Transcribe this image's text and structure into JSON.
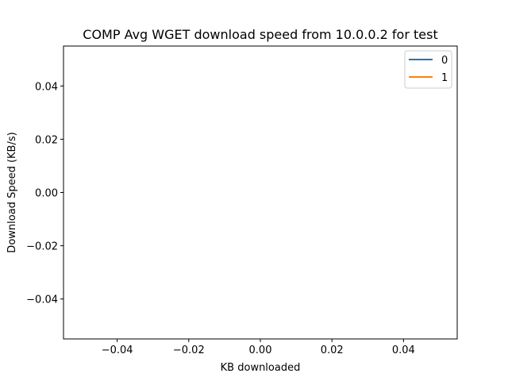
{
  "chart_data": {
    "type": "line",
    "title": "COMP Avg WGET download speed from 10.0.0.2 for test",
    "xlabel": "KB downloaded",
    "ylabel": "Download Speed (KB/s)",
    "xlim": [
      -0.055,
      0.055
    ],
    "ylim": [
      -0.055,
      0.055
    ],
    "xticks": [
      -0.04,
      -0.02,
      0.0,
      0.02,
      0.04
    ],
    "xtick_labels": [
      "−0.04",
      "−0.02",
      "0.00",
      "0.02",
      "0.04"
    ],
    "yticks": [
      -0.04,
      -0.02,
      0.0,
      0.02,
      0.04
    ],
    "ytick_labels": [
      "−0.04",
      "−0.02",
      "0.00",
      "0.02",
      "0.04"
    ],
    "grid": false,
    "legend_position": "top-right",
    "series": [
      {
        "name": "0",
        "color": "#1f77b4",
        "x": [],
        "y": []
      },
      {
        "name": "1",
        "color": "#ff7f0e",
        "x": [],
        "y": []
      }
    ]
  }
}
